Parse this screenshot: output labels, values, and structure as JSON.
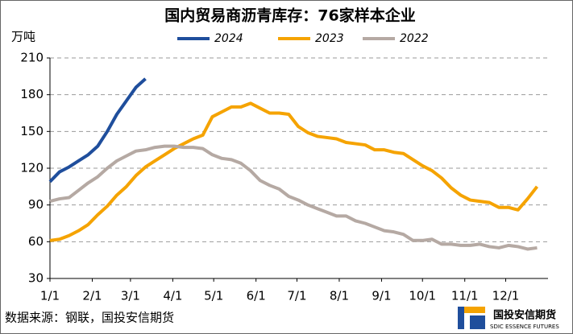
{
  "chart_data": {
    "type": "line",
    "title": "国内贸易商沥青库存：76家样本企业",
    "y_label": "万吨",
    "source": "数据来源：钢联，国投安信期货",
    "logo_text": "国投安信期货",
    "logo_subtext": "SDIC ESSENCE FUTURES",
    "x": [
      0,
      7,
      14,
      21,
      28,
      35,
      42,
      49,
      56,
      63,
      70,
      77,
      84,
      91,
      98,
      105,
      112,
      119,
      126,
      133,
      140,
      147,
      154,
      161,
      168,
      175,
      182,
      189,
      196,
      203,
      210,
      217,
      224,
      231,
      238,
      245,
      252,
      259,
      266,
      273,
      280,
      287,
      294,
      301,
      308,
      315,
      322,
      329,
      336,
      343,
      350,
      357
    ],
    "xlim": [
      0,
      365
    ],
    "xticks": [
      {
        "value": 0,
        "label": "1/1"
      },
      {
        "value": 31,
        "label": "2/1"
      },
      {
        "value": 59,
        "label": "3/1"
      },
      {
        "value": 90,
        "label": "4/1"
      },
      {
        "value": 120,
        "label": "5/1"
      },
      {
        "value": 151,
        "label": "6/1"
      },
      {
        "value": 181,
        "label": "7/1"
      },
      {
        "value": 212,
        "label": "8/1"
      },
      {
        "value": 243,
        "label": "9/1"
      },
      {
        "value": 273,
        "label": "10/1"
      },
      {
        "value": 304,
        "label": "11/1"
      },
      {
        "value": 334,
        "label": "12/1"
      }
    ],
    "ylim": [
      30,
      210
    ],
    "yticks": [
      30,
      60,
      90,
      120,
      150,
      180,
      210
    ],
    "grid": true,
    "legend": "top",
    "series": [
      {
        "name": "2024",
        "color": "#1f4e9c",
        "values": [
          109,
          117,
          121,
          126,
          131,
          138,
          150,
          164,
          175,
          186,
          193,
          null,
          null,
          null,
          null,
          null,
          null,
          null,
          null,
          null,
          null,
          null,
          null,
          null,
          null,
          null,
          null,
          null,
          null,
          null,
          null,
          null,
          null,
          null,
          null,
          null,
          null,
          null,
          null,
          null,
          null,
          null,
          null,
          null,
          null,
          null,
          null,
          null,
          null,
          null,
          null,
          null
        ]
      },
      {
        "name": "2023",
        "color": "#f5a300",
        "values": [
          61,
          62,
          65,
          69,
          74,
          82,
          89,
          98,
          105,
          114,
          121,
          126,
          131,
          136,
          140,
          144,
          147,
          162,
          166,
          170,
          170,
          173,
          169,
          165,
          165,
          164,
          154,
          149,
          146,
          145,
          144,
          141,
          140,
          139,
          135,
          135,
          133,
          132,
          127,
          122,
          118,
          112,
          104,
          98,
          94,
          93,
          92,
          88,
          88,
          86,
          95,
          105
        ]
      },
      {
        "name": "2022",
        "color": "#b5a9a3",
        "values": [
          93,
          95,
          96,
          102,
          108,
          113,
          120,
          126,
          130,
          134,
          135,
          137,
          138,
          138,
          137,
          137,
          136,
          131,
          128,
          127,
          124,
          118,
          110,
          106,
          103,
          97,
          94,
          90,
          87,
          84,
          81,
          81,
          77,
          75,
          72,
          69,
          68,
          66,
          61,
          61,
          62,
          58,
          58,
          57,
          57,
          58,
          56,
          55,
          57,
          56,
          54,
          55
        ]
      }
    ]
  }
}
